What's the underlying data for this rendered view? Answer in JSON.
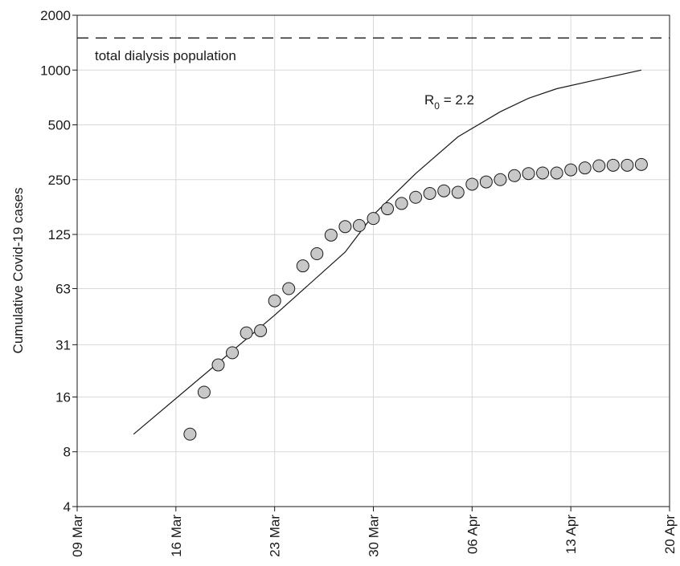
{
  "chart_data": {
    "type": "scatter",
    "ylabel": "Cumulative Covid-19 cases",
    "y_scale": "log",
    "ylim": [
      4,
      2000
    ],
    "y_ticks": [
      4,
      8,
      16,
      31,
      63,
      125,
      250,
      500,
      1000,
      2000
    ],
    "xlim": [
      "2020-03-09",
      "2020-04-20"
    ],
    "x_ticks": [
      {
        "date": "2020-03-09",
        "label": "09 Mar"
      },
      {
        "date": "2020-03-16",
        "label": "16 Mar"
      },
      {
        "date": "2020-03-23",
        "label": "23 Mar"
      },
      {
        "date": "2020-03-30",
        "label": "30 Mar"
      },
      {
        "date": "2020-04-06",
        "label": "06 Apr"
      },
      {
        "date": "2020-04-13",
        "label": "13 Apr"
      },
      {
        "date": "2020-04-20",
        "label": "20 Apr"
      }
    ],
    "grid": true,
    "reference_line": {
      "value": 1500,
      "style": "dashed",
      "label": "total dialysis population"
    },
    "model_curve": {
      "label_prefix": "R",
      "label_subscript": "0",
      "label_suffix": " = 2.2",
      "points": [
        {
          "x": "2020-03-13",
          "y": 10
        },
        {
          "x": "2020-03-23",
          "y": 45
        },
        {
          "x": "2020-03-28",
          "y": 100
        },
        {
          "x": "2020-03-30",
          "y": 160
        },
        {
          "x": "2020-04-02",
          "y": 270
        },
        {
          "x": "2020-04-05",
          "y": 430
        },
        {
          "x": "2020-04-08",
          "y": 590
        },
        {
          "x": "2020-04-10",
          "y": 700
        },
        {
          "x": "2020-04-12",
          "y": 790
        },
        {
          "x": "2020-04-15",
          "y": 890
        },
        {
          "x": "2020-04-18",
          "y": 1000
        }
      ]
    },
    "observed": [
      {
        "x": "2020-03-17",
        "y": 10
      },
      {
        "x": "2020-03-18",
        "y": 17
      },
      {
        "x": "2020-03-19",
        "y": 24
      },
      {
        "x": "2020-03-20",
        "y": 28
      },
      {
        "x": "2020-03-21",
        "y": 36
      },
      {
        "x": "2020-03-22",
        "y": 37
      },
      {
        "x": "2020-03-23",
        "y": 54
      },
      {
        "x": "2020-03-24",
        "y": 63
      },
      {
        "x": "2020-03-25",
        "y": 84
      },
      {
        "x": "2020-03-26",
        "y": 98
      },
      {
        "x": "2020-03-27",
        "y": 124
      },
      {
        "x": "2020-03-28",
        "y": 138
      },
      {
        "x": "2020-03-29",
        "y": 140
      },
      {
        "x": "2020-03-30",
        "y": 153
      },
      {
        "x": "2020-03-31",
        "y": 173
      },
      {
        "x": "2020-04-01",
        "y": 185
      },
      {
        "x": "2020-04-02",
        "y": 200
      },
      {
        "x": "2020-04-03",
        "y": 210
      },
      {
        "x": "2020-04-04",
        "y": 217
      },
      {
        "x": "2020-04-05",
        "y": 213
      },
      {
        "x": "2020-04-06",
        "y": 236
      },
      {
        "x": "2020-04-07",
        "y": 243
      },
      {
        "x": "2020-04-08",
        "y": 250
      },
      {
        "x": "2020-04-09",
        "y": 263
      },
      {
        "x": "2020-04-10",
        "y": 270
      },
      {
        "x": "2020-04-11",
        "y": 272
      },
      {
        "x": "2020-04-12",
        "y": 272
      },
      {
        "x": "2020-04-13",
        "y": 283
      },
      {
        "x": "2020-04-14",
        "y": 290
      },
      {
        "x": "2020-04-15",
        "y": 298
      },
      {
        "x": "2020-04-16",
        "y": 300
      },
      {
        "x": "2020-04-17",
        "y": 300
      },
      {
        "x": "2020-04-18",
        "y": 303
      }
    ],
    "colors": {
      "marker_fill": "#c8c8c8",
      "marker_stroke": "#1a1a1a",
      "line": "#1a1a1a",
      "grid": "#d9d9d9"
    }
  }
}
